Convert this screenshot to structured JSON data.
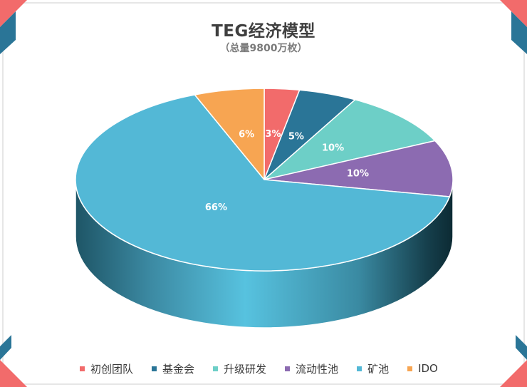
{
  "chart_data": {
    "type": "pie",
    "title": "TEG经济模型",
    "subtitle": "（总量9800万枚）",
    "legend_position": "bottom",
    "slices": [
      {
        "name": "初创团队",
        "value": 3,
        "label": "3%",
        "color": "#f26b6b"
      },
      {
        "name": "基金会",
        "value": 5,
        "label": "5%",
        "color": "#2a7597"
      },
      {
        "name": "升级研发",
        "value": 10,
        "label": "10%",
        "color": "#6dcfc7"
      },
      {
        "name": "流动性池",
        "value": 10,
        "label": "10%",
        "color": "#8c6bb1"
      },
      {
        "name": "矿池",
        "value": 66,
        "label": "66%",
        "color": "#53b8d6"
      },
      {
        "name": "IDO",
        "value": 6,
        "label": "6%",
        "color": "#f7a552"
      }
    ]
  }
}
